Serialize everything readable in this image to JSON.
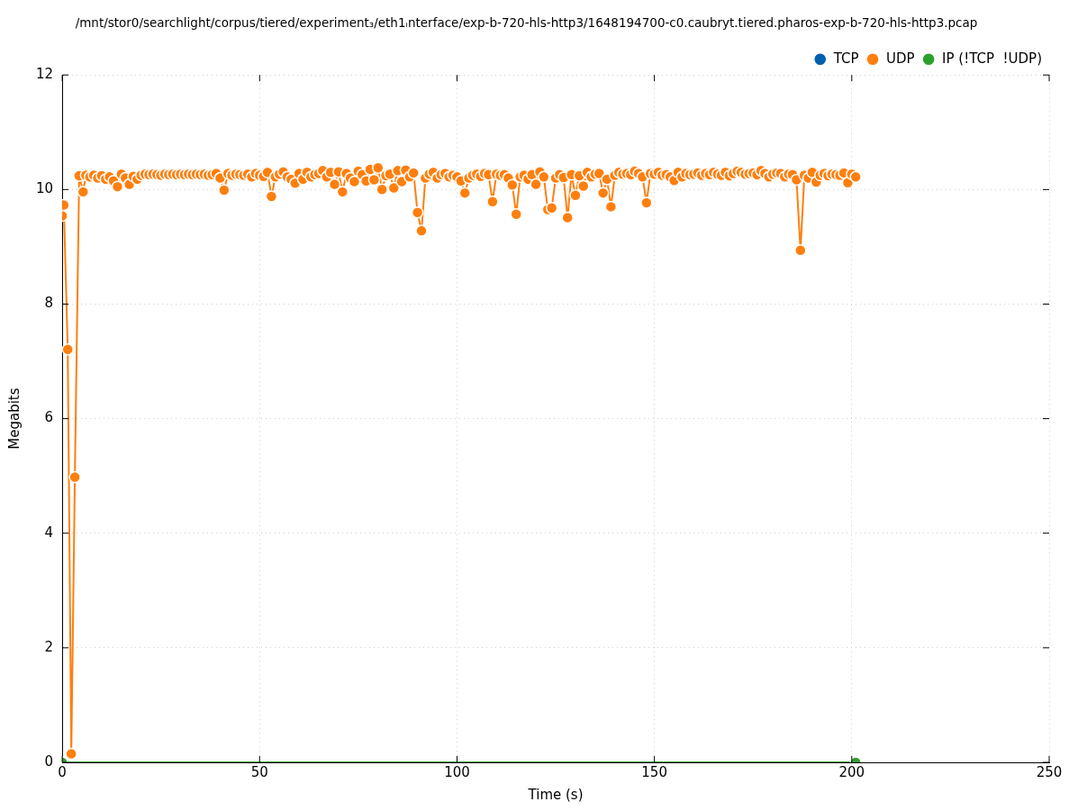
{
  "chart_data": {
    "type": "line",
    "title": "/mnt/stor0/searchlight/corpus/tiered/experiment₃/eth1ᵢnterface/exp-b-720-hls-http3/1648194700-c0.caubryt.tiered.pharos-exp-b-720-hls-http3.pcap",
    "xlabel": "Time (s)",
    "ylabel": "Megabits",
    "xlim": [
      0,
      250
    ],
    "xticks": [
      0,
      50,
      100,
      150,
      200,
      250
    ],
    "ylim": [
      0,
      12
    ],
    "yticks": [
      0,
      2,
      4,
      6,
      8,
      10,
      12
    ],
    "grid": true,
    "legend": "top right",
    "marker": "circle",
    "line_style": "solid",
    "series": [
      {
        "name": "TCP",
        "color": "#0060ad"
      },
      {
        "name": "UDP",
        "color": "#ff7f0e",
        "x": [
          0,
          0.4,
          1.4,
          2.3,
          3.2,
          4.3,
          5.3,
          6,
          7,
          8,
          9,
          10,
          11,
          12,
          13,
          14,
          15,
          16,
          17,
          18,
          19,
          20,
          21,
          22,
          23,
          24,
          25,
          26,
          27,
          28,
          29,
          30,
          31,
          32,
          33,
          34,
          35,
          36,
          37,
          38,
          39,
          40,
          41,
          42,
          43,
          44,
          45,
          46,
          47,
          48,
          49,
          50,
          51,
          52,
          53,
          54,
          55,
          56,
          57,
          58,
          59,
          60,
          61,
          62,
          63,
          64,
          65,
          66,
          67,
          68,
          69,
          70,
          71,
          72,
          73,
          74,
          75,
          76,
          77,
          78,
          79,
          80,
          81,
          82,
          83,
          84,
          85,
          86,
          87,
          88,
          89,
          90,
          91,
          92,
          93,
          94,
          95,
          96,
          97,
          98,
          99,
          100,
          101,
          102,
          103,
          104,
          105,
          106,
          107,
          108,
          109,
          110,
          111,
          112,
          113,
          114,
          115,
          116,
          117,
          118,
          119,
          120,
          121,
          122,
          123,
          124,
          125,
          126,
          127,
          128,
          129,
          130,
          131,
          132,
          133,
          134,
          135,
          136,
          137,
          138,
          139,
          140,
          141,
          142,
          143,
          144,
          145,
          146,
          147,
          148,
          149,
          150,
          151,
          152,
          153,
          154,
          155,
          156,
          157,
          158,
          159,
          160,
          161,
          162,
          163,
          164,
          165,
          166,
          167,
          168,
          169,
          170,
          171,
          172,
          173,
          174,
          175,
          176,
          177,
          178,
          179,
          180,
          181,
          182,
          183,
          184,
          185,
          186,
          187,
          188,
          189,
          190,
          191,
          192,
          193,
          194,
          195,
          196,
          197,
          198,
          199,
          200,
          201
        ],
        "values": [
          9.54,
          9.73,
          7.21,
          0.15,
          4.98,
          10.24,
          9.96,
          10.25,
          10.22,
          10.25,
          10.2,
          10.24,
          10.18,
          10.22,
          10.15,
          10.05,
          10.27,
          10.2,
          10.09,
          10.23,
          10.18,
          10.25,
          10.27,
          10.26,
          10.27,
          10.26,
          10.25,
          10.27,
          10.26,
          10.27,
          10.26,
          10.27,
          10.26,
          10.27,
          10.26,
          10.27,
          10.26,
          10.27,
          10.25,
          10.26,
          10.28,
          10.2,
          9.99,
          10.28,
          10.25,
          10.27,
          10.26,
          10.25,
          10.27,
          10.22,
          10.28,
          10.25,
          10.23,
          10.3,
          9.88,
          10.22,
          10.27,
          10.31,
          10.22,
          10.18,
          10.11,
          10.28,
          10.18,
          10.3,
          10.22,
          10.26,
          10.28,
          10.33,
          10.22,
          10.3,
          10.09,
          10.31,
          9.96,
          10.28,
          10.2,
          10.14,
          10.32,
          10.26,
          10.15,
          10.35,
          10.17,
          10.38,
          10.0,
          10.24,
          10.27,
          10.03,
          10.33,
          10.14,
          10.34,
          10.22,
          10.29,
          9.6,
          9.28,
          10.2,
          10.27,
          10.3,
          10.2,
          10.26,
          10.28,
          10.22,
          10.25,
          10.22,
          10.15,
          9.94,
          10.2,
          10.25,
          10.27,
          10.23,
          10.28,
          10.26,
          9.79,
          10.27,
          10.25,
          10.26,
          10.2,
          10.08,
          9.57,
          10.22,
          10.25,
          10.18,
          10.26,
          10.09,
          10.31,
          10.22,
          9.65,
          9.68,
          10.2,
          10.26,
          10.21,
          9.51,
          10.26,
          9.9,
          10.24,
          10.06,
          10.3,
          10.22,
          10.27,
          10.28,
          9.94,
          10.18,
          9.7,
          10.25,
          10.3,
          10.27,
          10.28,
          10.26,
          10.32,
          10.28,
          10.22,
          9.77,
          10.28,
          10.27,
          10.3,
          10.25,
          10.26,
          10.22,
          10.16,
          10.3,
          10.22,
          10.28,
          10.26,
          10.27,
          10.29,
          10.25,
          10.28,
          10.26,
          10.3,
          10.27,
          10.25,
          10.3,
          10.24,
          10.28,
          10.32,
          10.3,
          10.27,
          10.28,
          10.29,
          10.26,
          10.33,
          10.28,
          10.22,
          10.27,
          10.29,
          10.28,
          10.22,
          10.27,
          10.26,
          10.17,
          8.94,
          10.25,
          10.2,
          10.3,
          10.13,
          10.25,
          10.28,
          10.24,
          10.27,
          10.26,
          10.25,
          10.29,
          10.12,
          10.27,
          10.22
        ]
      },
      {
        "name": "IP (!TCP  !UDP)",
        "color": "#2ca02c",
        "x": [
          0,
          201
        ],
        "values": [
          0,
          0
        ]
      }
    ]
  }
}
